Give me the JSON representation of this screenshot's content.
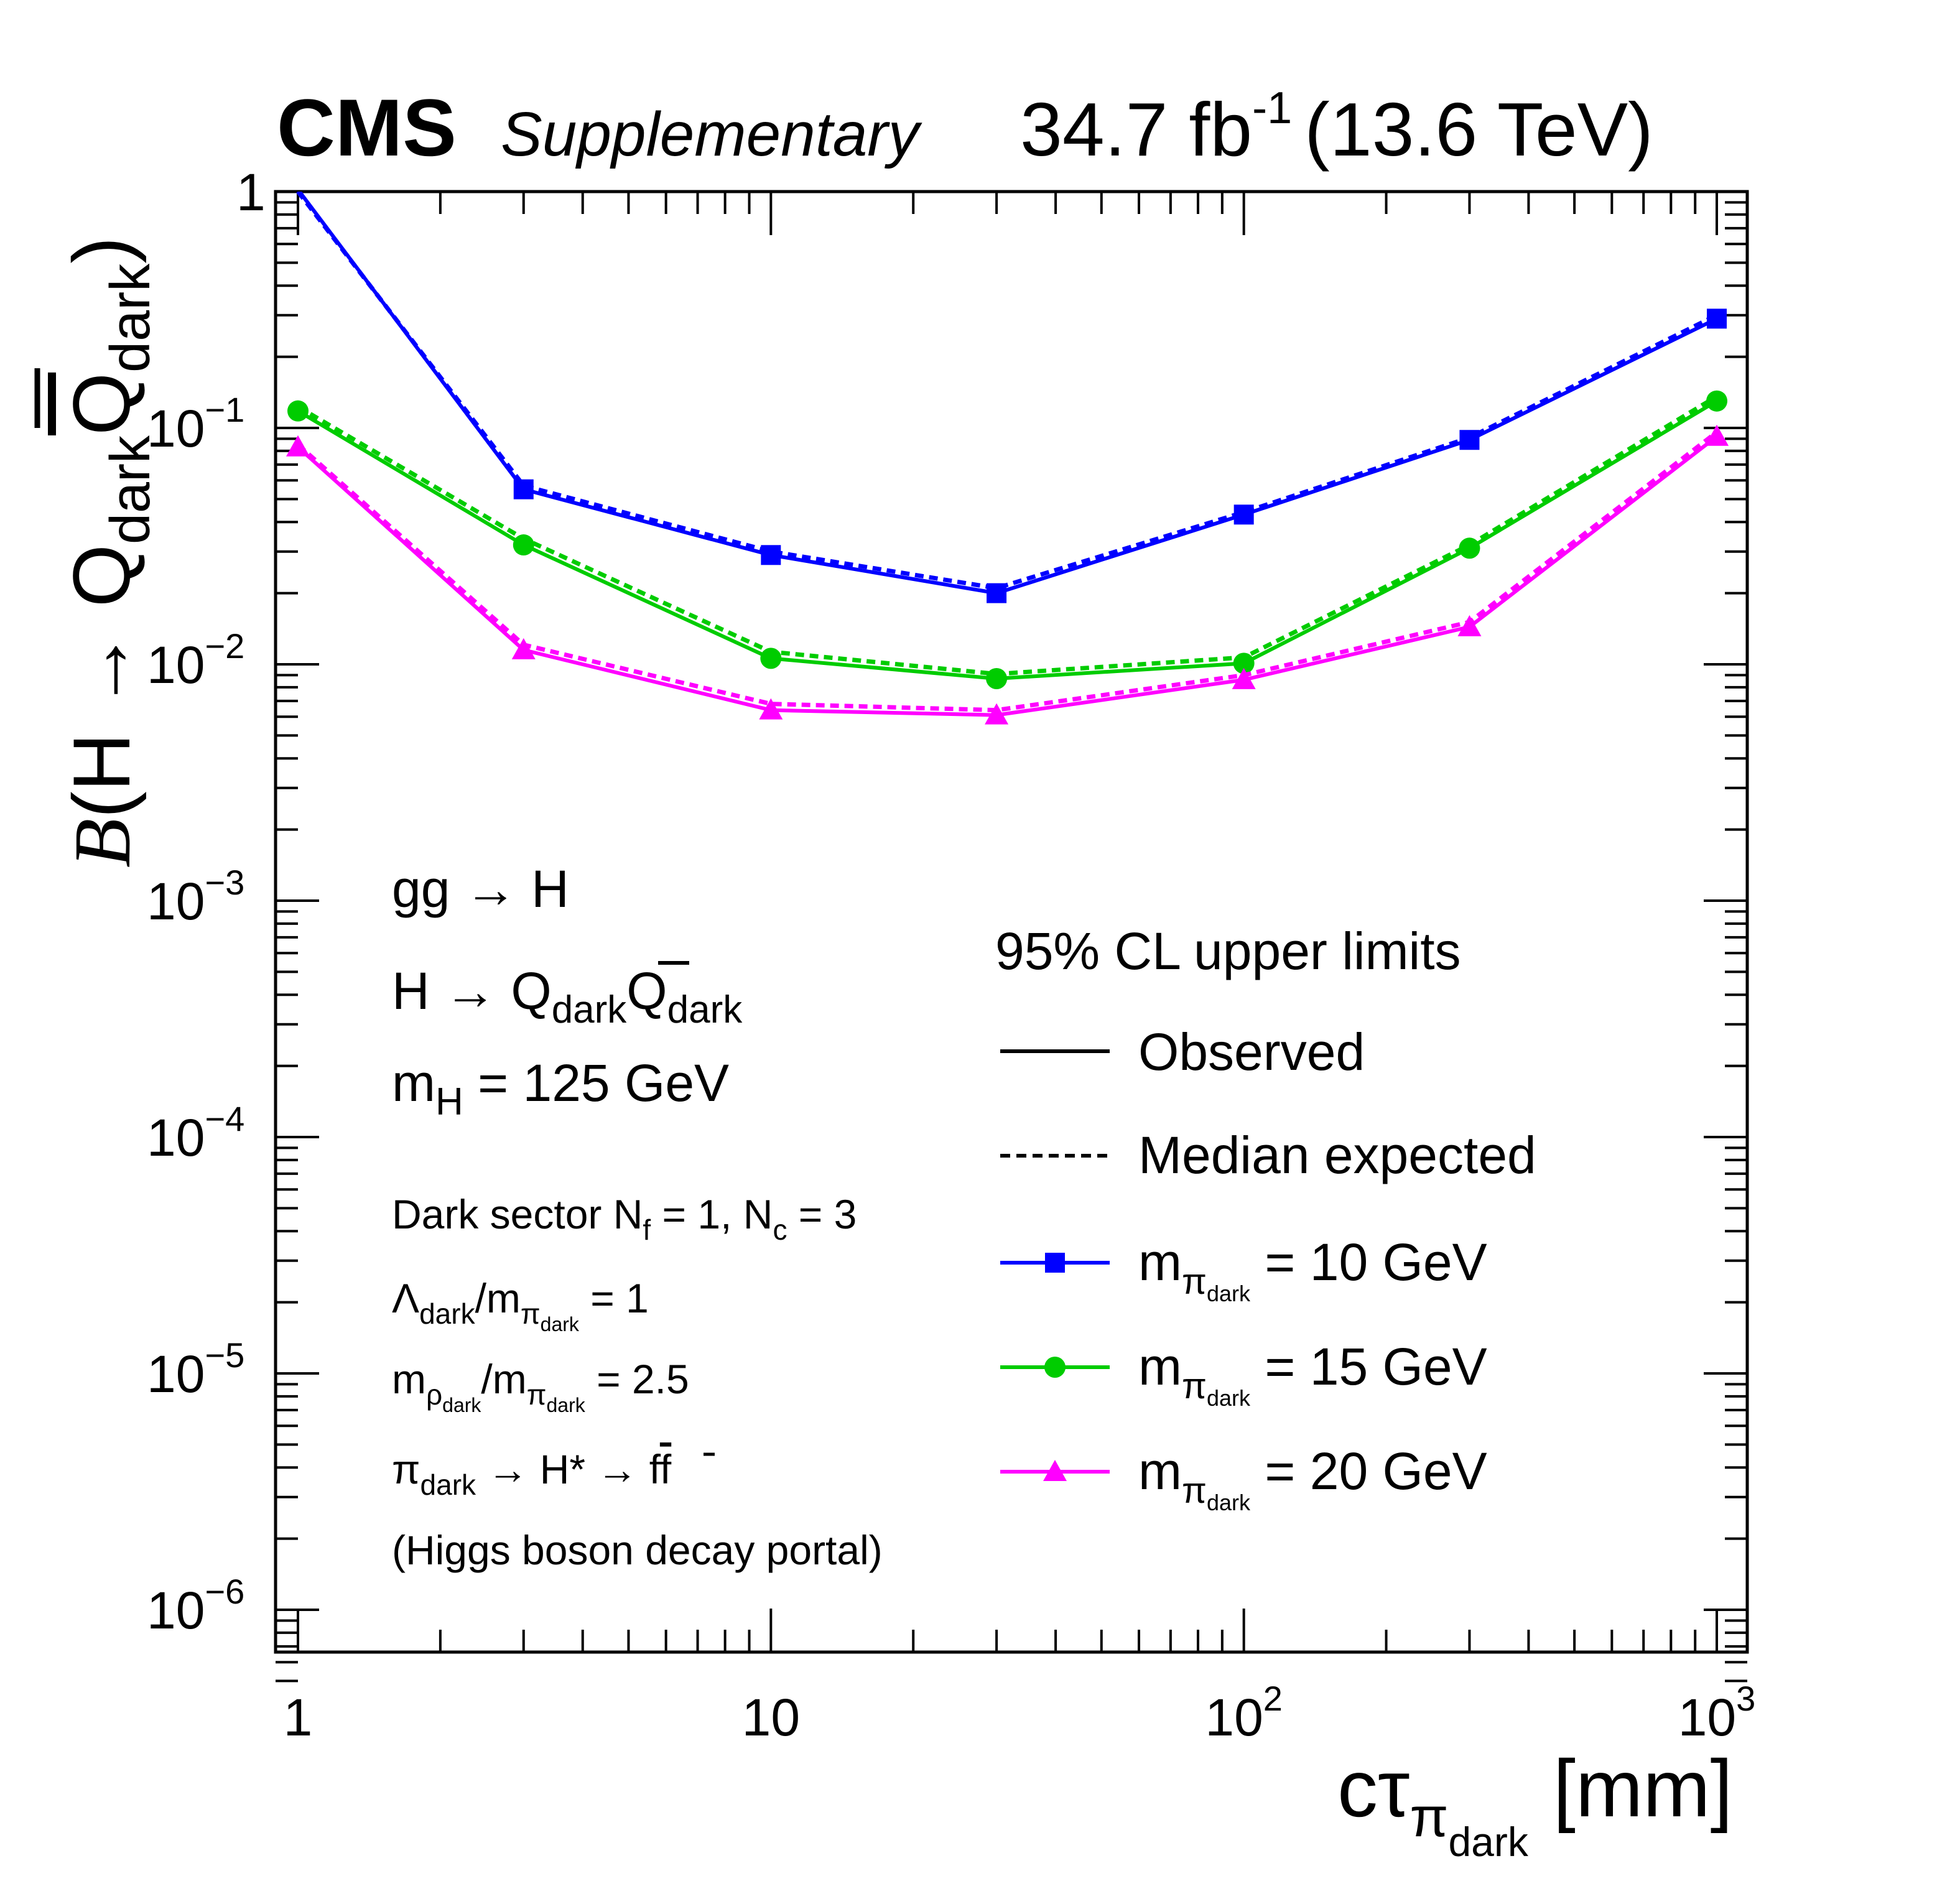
{
  "header": {
    "experiment": "CMS",
    "status": "Supplementary",
    "lumi_value": "34.7 fb",
    "lumi_exp": "-1",
    "energy": "(13.6 TeV)"
  },
  "axes": {
    "x": {
      "label_main": "cτ",
      "label_sub": "π",
      "label_subsub": "dark",
      "label_unit": "[mm]",
      "scale": "log",
      "range": [
        0.89,
        1120
      ],
      "tick_labels": [
        {
          "value": 1,
          "base": "1",
          "exp": ""
        },
        {
          "value": 10,
          "base": "10",
          "exp": ""
        },
        {
          "value": 100,
          "base": "10",
          "exp": "2"
        },
        {
          "value": 1000,
          "base": "10",
          "exp": "3"
        }
      ]
    },
    "y": {
      "label_B": "B",
      "label_open": "(H → Q",
      "label_sub1": "dark",
      "label_Q": "Q",
      "label_sub2": "dark",
      "label_close": ")",
      "scale": "log",
      "range": [
        5e-07,
        1
      ],
      "tick_labels": [
        {
          "value": 1,
          "base": "1",
          "exp": ""
        },
        {
          "value": 0.1,
          "base": "10",
          "exp": "−1"
        },
        {
          "value": 0.01,
          "base": "10",
          "exp": "−2"
        },
        {
          "value": 0.001,
          "base": "10",
          "exp": "−3"
        },
        {
          "value": 0.0001,
          "base": "10",
          "exp": "−4"
        },
        {
          "value": 1e-05,
          "base": "10",
          "exp": "−5"
        },
        {
          "value": 1e-06,
          "base": "10",
          "exp": "−6"
        }
      ]
    }
  },
  "annotations": {
    "process": "gg → H",
    "decay_pre": "H → Q",
    "decay_sub1": "dark",
    "decay_Q": "Q",
    "decay_sub2": "dark",
    "mass_pre": "m",
    "mass_sub": "H",
    "mass_post": " = 125 GeV",
    "sector_pre": "Dark sector N",
    "sector_sub_f": "f",
    "sector_mid": " = 1,  N",
    "sector_sub_c": "c",
    "sector_post": " = 3",
    "lambda_sym": "Λ",
    "lambda_sub": "dark",
    "lambda_mid": "/m",
    "lambda_sub2": "π",
    "lambda_subsub": "dark",
    "lambda_post": " = 1",
    "rho_pre": "m",
    "rho_sub": "ρ",
    "rho_subsub": "dark",
    "rho_mid": "/m",
    "rho_sub2": "π",
    "rho_subsub2": "dark",
    "rho_post": " = 2.5",
    "portal_pi": "π",
    "portal_sub": "dark",
    "portal_post": " → H* → f",
    "portal_fbar": "f",
    "portal_note": "(Higgs boson decay portal)"
  },
  "legend": {
    "title": "95% CL upper limits",
    "observed": "Observed",
    "expected": "Median expected",
    "entries": [
      {
        "pre": "m",
        "sub": "π",
        "subsub": "dark",
        "post": " = 10 GeV"
      },
      {
        "pre": "m",
        "sub": "π",
        "subsub": "dark",
        "post": " = 15 GeV"
      },
      {
        "pre": "m",
        "sub": "π",
        "subsub": "dark",
        "post": " = 20 GeV"
      }
    ]
  },
  "chart_data": {
    "type": "line",
    "x_unit": "mm",
    "x": [
      1,
      3,
      10,
      30,
      100,
      300,
      1000
    ],
    "series": [
      {
        "name": "m = 10 GeV",
        "mass_GeV": 10,
        "color": "#0000ff",
        "marker": "square",
        "observed": [
          1.02,
          0.055,
          0.029,
          0.02,
          0.043,
          0.089,
          0.29
        ],
        "expected": [
          1.0,
          0.057,
          0.03,
          0.021,
          0.044,
          0.091,
          0.3
        ]
      },
      {
        "name": "m = 15 GeV",
        "mass_GeV": 15,
        "color": "#00cc00",
        "marker": "circle",
        "observed": [
          0.118,
          0.032,
          0.0106,
          0.0087,
          0.0101,
          0.031,
          0.13
        ],
        "expected": [
          0.123,
          0.034,
          0.0113,
          0.0091,
          0.0107,
          0.032,
          0.136
        ]
      },
      {
        "name": "m = 20 GeV",
        "mass_GeV": 20,
        "color": "#ff00ff",
        "marker": "triangle",
        "observed": [
          0.083,
          0.0115,
          0.0064,
          0.0061,
          0.0086,
          0.0144,
          0.092
        ],
        "expected": [
          0.085,
          0.0121,
          0.0068,
          0.0064,
          0.009,
          0.0151,
          0.096
        ]
      }
    ],
    "grid": false,
    "legend_position": "bottom-right"
  }
}
